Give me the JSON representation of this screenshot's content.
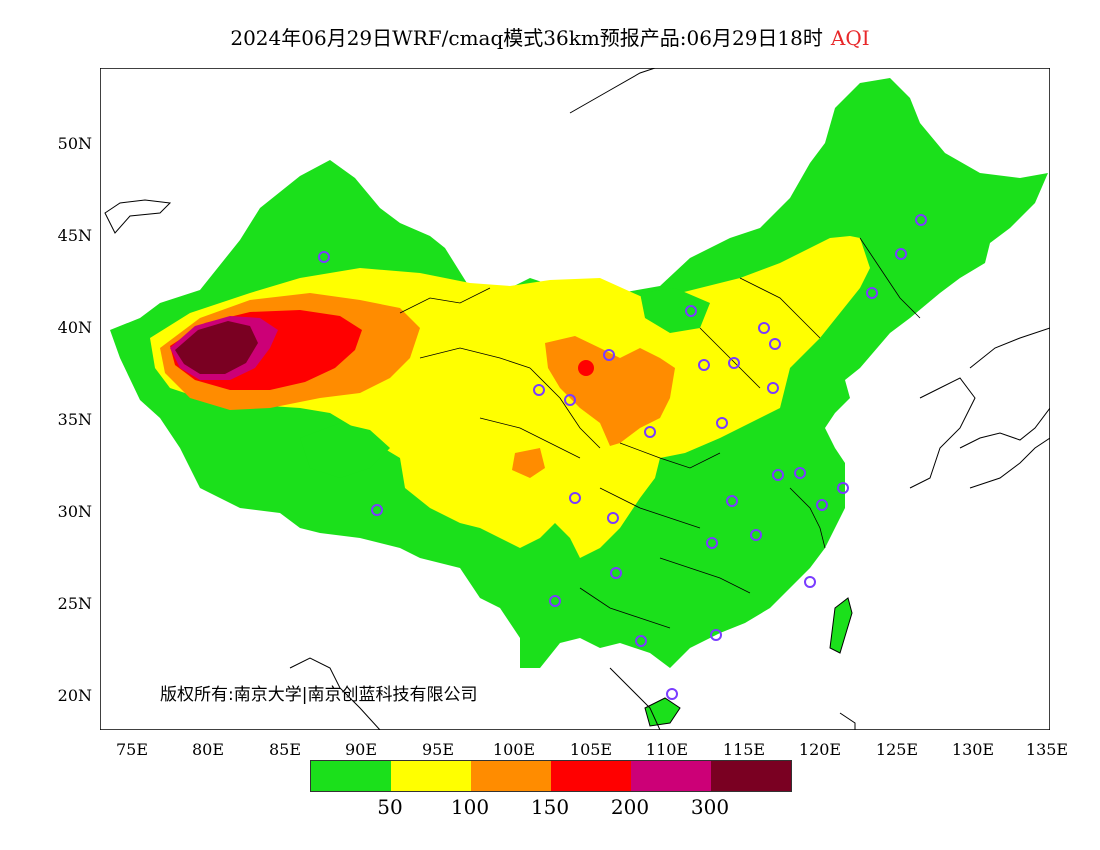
{
  "title": {
    "main": "2024年06月29日WRF/cmaq模式36km预报产品:06月29日18时",
    "variable": "AQI"
  },
  "axes": {
    "lat_labels": [
      "50N",
      "45N",
      "40N",
      "35N",
      "30N",
      "25N",
      "20N"
    ],
    "lon_labels": [
      "75E",
      "80E",
      "85E",
      "90E",
      "95E",
      "100E",
      "105E",
      "110E",
      "115E",
      "120E",
      "125E",
      "130E",
      "135E"
    ]
  },
  "copyright": "版权所有:南京大学|南京创蓝科技有限公司",
  "legend": {
    "colors": [
      "#1be01b",
      "#ffff00",
      "#ff8c00",
      "#ff0000",
      "#cc0077",
      "#7a0022"
    ],
    "values": [
      "50",
      "100",
      "150",
      "200",
      "300"
    ]
  }
}
